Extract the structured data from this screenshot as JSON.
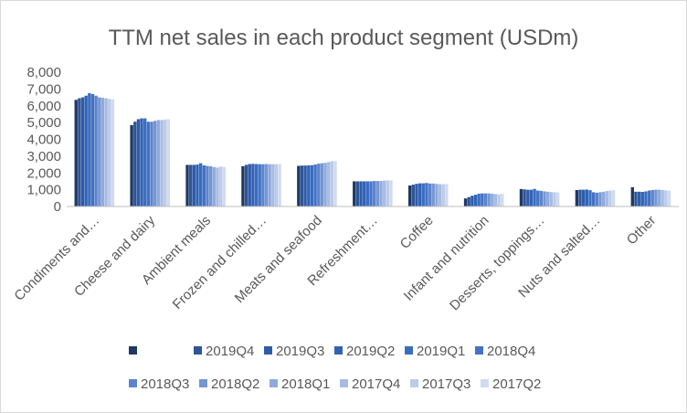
{
  "chart_data": {
    "type": "bar",
    "title": "TTM net sales in each product segment (USDm)",
    "xlabel": "",
    "ylabel": "",
    "ylim": [
      0,
      8000
    ],
    "yticks": [
      0,
      1000,
      2000,
      3000,
      4000,
      5000,
      6000,
      7000,
      8000
    ],
    "ytick_labels": [
      "0",
      "1,000",
      "2,000",
      "3,000",
      "4,000",
      "5,000",
      "6,000",
      "7,000",
      "8,000"
    ],
    "grid": false,
    "legend_position": "bottom",
    "categories": [
      "Condiments and…",
      "Cheese and dairy",
      "Ambient meals",
      "Frozen and chilled…",
      "Meats and seafood",
      "Refreshment…",
      "Coffee",
      "Infant and nutrition",
      "Desserts, toppings…",
      "Nuts and salted…",
      "Other"
    ],
    "series": [
      {
        "name": "",
        "color": "#1f3864",
        "values": [
          6350,
          4850,
          2480,
          2400,
          2420,
          1500,
          1250,
          480,
          1040,
          980,
          1150
        ]
      },
      {
        "name": "2019Q4",
        "color": "#2f5597",
        "values": [
          6450,
          5050,
          2480,
          2480,
          2440,
          1500,
          1300,
          560,
          1020,
          1000,
          880
        ]
      },
      {
        "name": "2019Q3",
        "color": "#2e5ca8",
        "values": [
          6500,
          5200,
          2480,
          2530,
          2440,
          1500,
          1350,
          640,
          1000,
          1000,
          880
        ]
      },
      {
        "name": "2019Q2",
        "color": "#3163b5",
        "values": [
          6600,
          5250,
          2500,
          2540,
          2450,
          1500,
          1380,
          700,
          1000,
          1010,
          870
        ]
      },
      {
        "name": "2019Q1",
        "color": "#3a6dc2",
        "values": [
          6750,
          5250,
          2580,
          2530,
          2460,
          1500,
          1380,
          760,
          1050,
          970,
          900
        ]
      },
      {
        "name": "2018Q4",
        "color": "#4472c4",
        "values": [
          6700,
          5050,
          2450,
          2520,
          2500,
          1500,
          1400,
          780,
          950,
          850,
          950
        ]
      },
      {
        "name": "2018Q3",
        "color": "#5b84cc",
        "values": [
          6600,
          5050,
          2420,
          2520,
          2550,
          1520,
          1370,
          780,
          930,
          820,
          980
        ]
      },
      {
        "name": "2018Q2",
        "color": "#7596d4",
        "values": [
          6500,
          5100,
          2400,
          2530,
          2580,
          1520,
          1370,
          780,
          900,
          850,
          1000
        ]
      },
      {
        "name": "2018Q1",
        "color": "#8faadc",
        "values": [
          6480,
          5150,
          2350,
          2520,
          2600,
          1520,
          1350,
          760,
          880,
          880,
          1000
        ]
      },
      {
        "name": "2017Q4",
        "color": "#a7bce3",
        "values": [
          6450,
          5150,
          2320,
          2520,
          2650,
          1540,
          1330,
          740,
          860,
          920,
          980
        ]
      },
      {
        "name": "2017Q3",
        "color": "#bccbea",
        "values": [
          6400,
          5180,
          2380,
          2520,
          2700,
          1560,
          1330,
          720,
          850,
          950,
          960
        ]
      },
      {
        "name": "2017Q2",
        "color": "#d0daf0",
        "values": [
          6380,
          5200,
          2350,
          2530,
          2700,
          1560,
          1330,
          760,
          840,
          970,
          950
        ]
      }
    ]
  }
}
